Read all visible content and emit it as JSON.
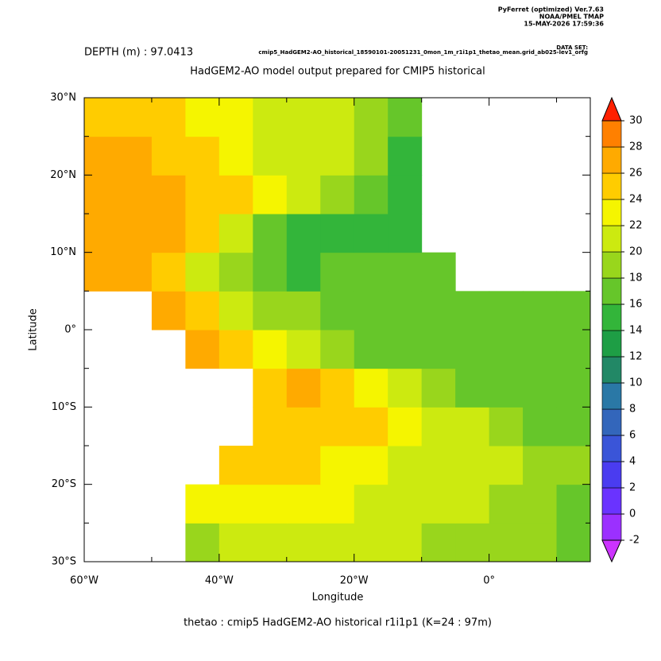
{
  "chart_data": {
    "type": "heatmap",
    "title": "HadGEM2-AO model output prepared for CMIP5 historical",
    "subtitle": "DEPTH (m) : 97.0413",
    "footer": "thetao : cmip5 HadGEM2-AO historical r1i1p1   (K=24 : 97m)",
    "credits": [
      "PyFerret (optimized) Ver.7.63",
      "NOAA/PMEL TMAP",
      "15-MAY-2026 17:59:36"
    ],
    "dataset_label": "DATA SET:",
    "dataset": "cmip5_HadGEM2-AO_historical_18590101-20051231_0mon_1m_r1i1p1_thetao_mean.grid_ab025-lev1_orfg",
    "x_label": "Longitude",
    "y_label": "Latitude",
    "xlim": [
      -60,
      15
    ],
    "ylim": [
      -30,
      30
    ],
    "xticks": [
      {
        "value": -60,
        "label": "60°W"
      },
      {
        "value": -40,
        "label": "40°W"
      },
      {
        "value": -20,
        "label": "20°W"
      },
      {
        "value": 0,
        "label": "0°"
      }
    ],
    "xminor": [
      -50,
      -30,
      -10,
      10
    ],
    "yticks": [
      {
        "value": 30,
        "label": "30°N"
      },
      {
        "value": 20,
        "label": "20°N"
      },
      {
        "value": 10,
        "label": "10°N"
      },
      {
        "value": 0,
        "label": "0°"
      },
      {
        "value": -10,
        "label": "10°S"
      },
      {
        "value": -20,
        "label": "20°S"
      },
      {
        "value": -30,
        "label": "30°S"
      }
    ],
    "yminor": [
      25,
      15,
      5,
      -5,
      -15,
      -25
    ],
    "lon_edges": [
      -60,
      -55,
      -50,
      -45,
      -40,
      -35,
      -30,
      -25,
      -20,
      -15,
      -10,
      -5,
      0,
      5,
      10,
      15
    ],
    "lat_edges": [
      -30,
      -25,
      -20,
      -15,
      -10,
      -5,
      0,
      5,
      10,
      15,
      20,
      25,
      30
    ],
    "values": [
      [
        null,
        null,
        null,
        19,
        21,
        21,
        21,
        21,
        20,
        20,
        19,
        19,
        18,
        18,
        17
      ],
      [
        null,
        null,
        null,
        22,
        23,
        23,
        23,
        22,
        21,
        21,
        20,
        20,
        19,
        19,
        17
      ],
      [
        null,
        null,
        null,
        null,
        24,
        25,
        24,
        23,
        22,
        21,
        21,
        20,
        20,
        19,
        18
      ],
      [
        null,
        null,
        null,
        null,
        null,
        25,
        25,
        25,
        24,
        23,
        21,
        20,
        19,
        17,
        17
      ],
      [
        null,
        null,
        null,
        null,
        null,
        25,
        26,
        25,
        23,
        20,
        18,
        17,
        17,
        17,
        17
      ],
      [
        null,
        null,
        null,
        26,
        25,
        22,
        20,
        18,
        17,
        17,
        16,
        16,
        16,
        16,
        16
      ],
      [
        null,
        null,
        27,
        24,
        21,
        19,
        18,
        17,
        17,
        17,
        17,
        17,
        17,
        17,
        17
      ],
      [
        26,
        27,
        25,
        20,
        18,
        16,
        15,
        16,
        17,
        17,
        17,
        null,
        null,
        null,
        null
      ],
      [
        26,
        27,
        26,
        24,
        21,
        17,
        15,
        14,
        15,
        15,
        null,
        null,
        null,
        null,
        null
      ],
      [
        26,
        26,
        26,
        25,
        24,
        22,
        20,
        19,
        16,
        15,
        null,
        null,
        null,
        null,
        null
      ],
      [
        26,
        26,
        25,
        24,
        22,
        21,
        20,
        20,
        19,
        15,
        null,
        null,
        null,
        null,
        null
      ],
      [
        25,
        25,
        24,
        23,
        22,
        21,
        21,
        20,
        19,
        17,
        null,
        null,
        null,
        null,
        null
      ]
    ],
    "levels": [
      -2,
      0,
      2,
      4,
      6,
      8,
      10,
      12,
      14,
      16,
      18,
      20,
      22,
      24,
      26,
      28,
      30
    ],
    "level_colors": [
      "#9b30ff",
      "#6a33ff",
      "#4a3cf0",
      "#3a55d8",
      "#3366bb",
      "#2a78a6",
      "#228866",
      "#1e9e45",
      "#33b53a",
      "#66c62a",
      "#99d61c",
      "#ccea10",
      "#f5f500",
      "#ffcc00",
      "#ffaa00",
      "#ff8000"
    ],
    "under_color": "#cc33ff",
    "over_color": "#ff2000"
  }
}
